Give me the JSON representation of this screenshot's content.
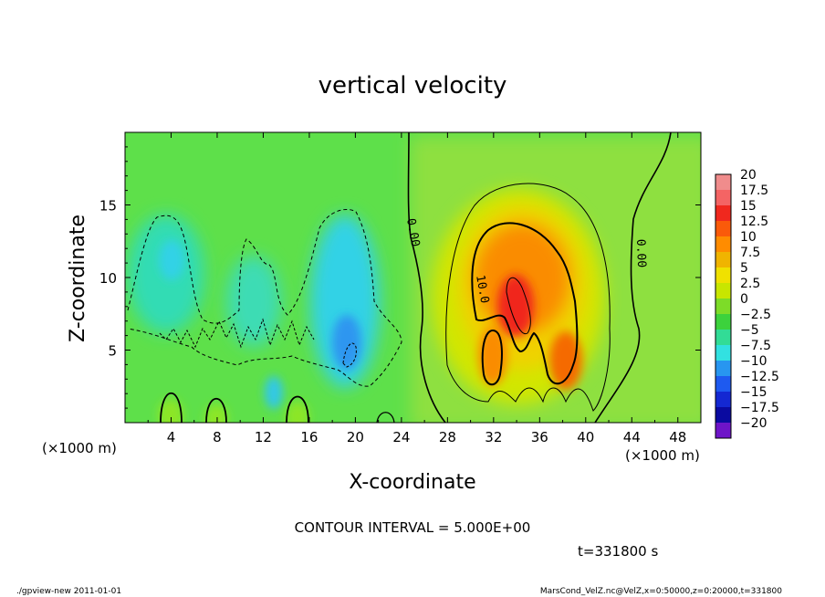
{
  "chart_data": {
    "type": "heatmap",
    "title": "vertical velocity",
    "xlabel": "X-coordinate",
    "ylabel": "Z-coordinate",
    "x_unit_left": "(×1000 m)",
    "x_unit_right": "(×1000 m)",
    "xlim": [
      0,
      50
    ],
    "ylim": [
      0,
      20
    ],
    "x_ticks": [
      4,
      8,
      12,
      16,
      20,
      24,
      28,
      32,
      36,
      40,
      44,
      48
    ],
    "y_ticks": [
      5,
      10,
      15
    ],
    "contour_interval_text": "CONTOUR INTERVAL = 5.000E+00",
    "time_text": "t=331800 s",
    "contour_labels": [
      "0.00",
      "0.00",
      "10.0"
    ],
    "colorbar": {
      "levels": [
        20,
        17.5,
        15,
        12.5,
        10,
        7.5,
        5,
        2.5,
        0,
        -2.5,
        -5,
        -7.5,
        -10,
        -12.5,
        -15,
        -17.5,
        -20
      ],
      "colors": [
        "#f08c8c",
        "#f46464",
        "#f0281e",
        "#fa5a0a",
        "#ff8c00",
        "#f0b400",
        "#f0e100",
        "#c8e600",
        "#7ddc28",
        "#3cd23c",
        "#32dc96",
        "#32e1e1",
        "#2896f0",
        "#1e5af0",
        "#1428d2",
        "#0a0aa0",
        "#6e14c8"
      ]
    },
    "field": {
      "background_value": 0,
      "features": [
        {
          "kind": "updraft",
          "x": 34,
          "z": 8,
          "peak": 17.5
        },
        {
          "kind": "updraft",
          "x": 38.5,
          "z": 4,
          "peak": 12
        },
        {
          "kind": "updraft",
          "x": 32,
          "z": 4.5,
          "peak": 11
        },
        {
          "kind": "downdraft",
          "x": 19,
          "z": 6,
          "peak": -7.5
        },
        {
          "kind": "downdraft",
          "x": 4,
          "z": 11,
          "peak": -5
        }
      ]
    }
  },
  "footer": {
    "left": "./gpview-new   2011-01-01",
    "right": "MarsCond_VelZ.nc@VelZ,x=0:50000,z=0:20000,t=331800"
  }
}
